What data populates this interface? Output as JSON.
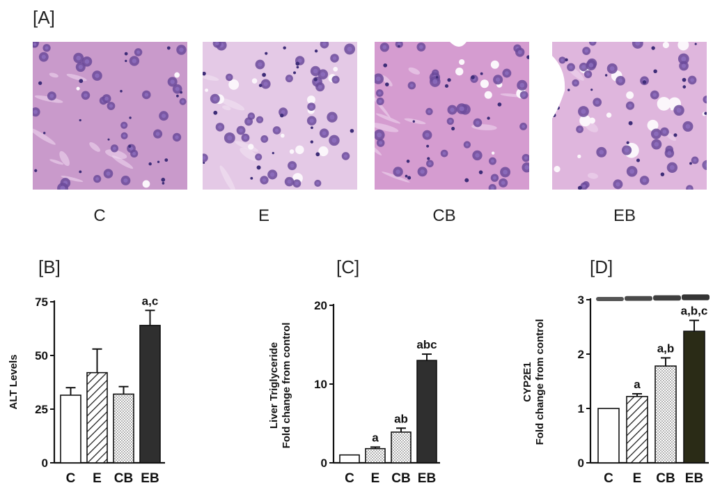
{
  "panel_a": {
    "label": "[A]",
    "images": [
      {
        "caption": "C",
        "tone": "#c99acb"
      },
      {
        "caption": "E",
        "tone": "#e4c9e6"
      },
      {
        "caption": "CB",
        "tone": "#d59cd0"
      },
      {
        "caption": "EB",
        "tone": "#dfb6dd"
      }
    ]
  },
  "chart_data": [
    {
      "panel": "[B]",
      "type": "bar",
      "ylabel": "ALT Levels",
      "categories": [
        "C",
        "E",
        "CB",
        "EB"
      ],
      "values": [
        31.5,
        42,
        32,
        64
      ],
      "errors": [
        3.5,
        11,
        3.5,
        7
      ],
      "annotations": [
        "",
        "",
        "",
        "a,c"
      ],
      "ylim": [
        0,
        75
      ],
      "yticks": [
        0,
        25,
        50,
        75
      ],
      "bar_styles": [
        "white",
        "diagonal-hatch",
        "dots",
        "dark"
      ]
    },
    {
      "panel": "[C]",
      "type": "bar",
      "ylabel": "Liver Triglyceride",
      "ylabel2": "Fold change from control",
      "categories": [
        "C",
        "E",
        "CB",
        "EB"
      ],
      "values": [
        1,
        1.8,
        3.9,
        13
      ],
      "errors": [
        0,
        0.2,
        0.5,
        0.8
      ],
      "annotations": [
        "",
        "a",
        "ab",
        "abc"
      ],
      "ylim": [
        0,
        20
      ],
      "yticks": [
        0,
        10,
        20
      ],
      "bar_styles": [
        "white",
        "dots",
        "dots",
        "dark"
      ]
    },
    {
      "panel": "[D]",
      "type": "bar",
      "ylabel": "CYP2E1",
      "ylabel2": "Fold change from control",
      "categories": [
        "C",
        "E",
        "CB",
        "EB"
      ],
      "values": [
        1,
        1.22,
        1.78,
        2.42
      ],
      "errors": [
        0,
        0.05,
        0.15,
        0.2
      ],
      "annotations": [
        "",
        "a",
        "a,b",
        "a,b,c"
      ],
      "ylim": [
        0,
        3
      ],
      "yticks": [
        0,
        1,
        2,
        3
      ],
      "bar_styles": [
        "white",
        "diagonal-hatch",
        "dots",
        "dark-olive"
      ]
    }
  ]
}
